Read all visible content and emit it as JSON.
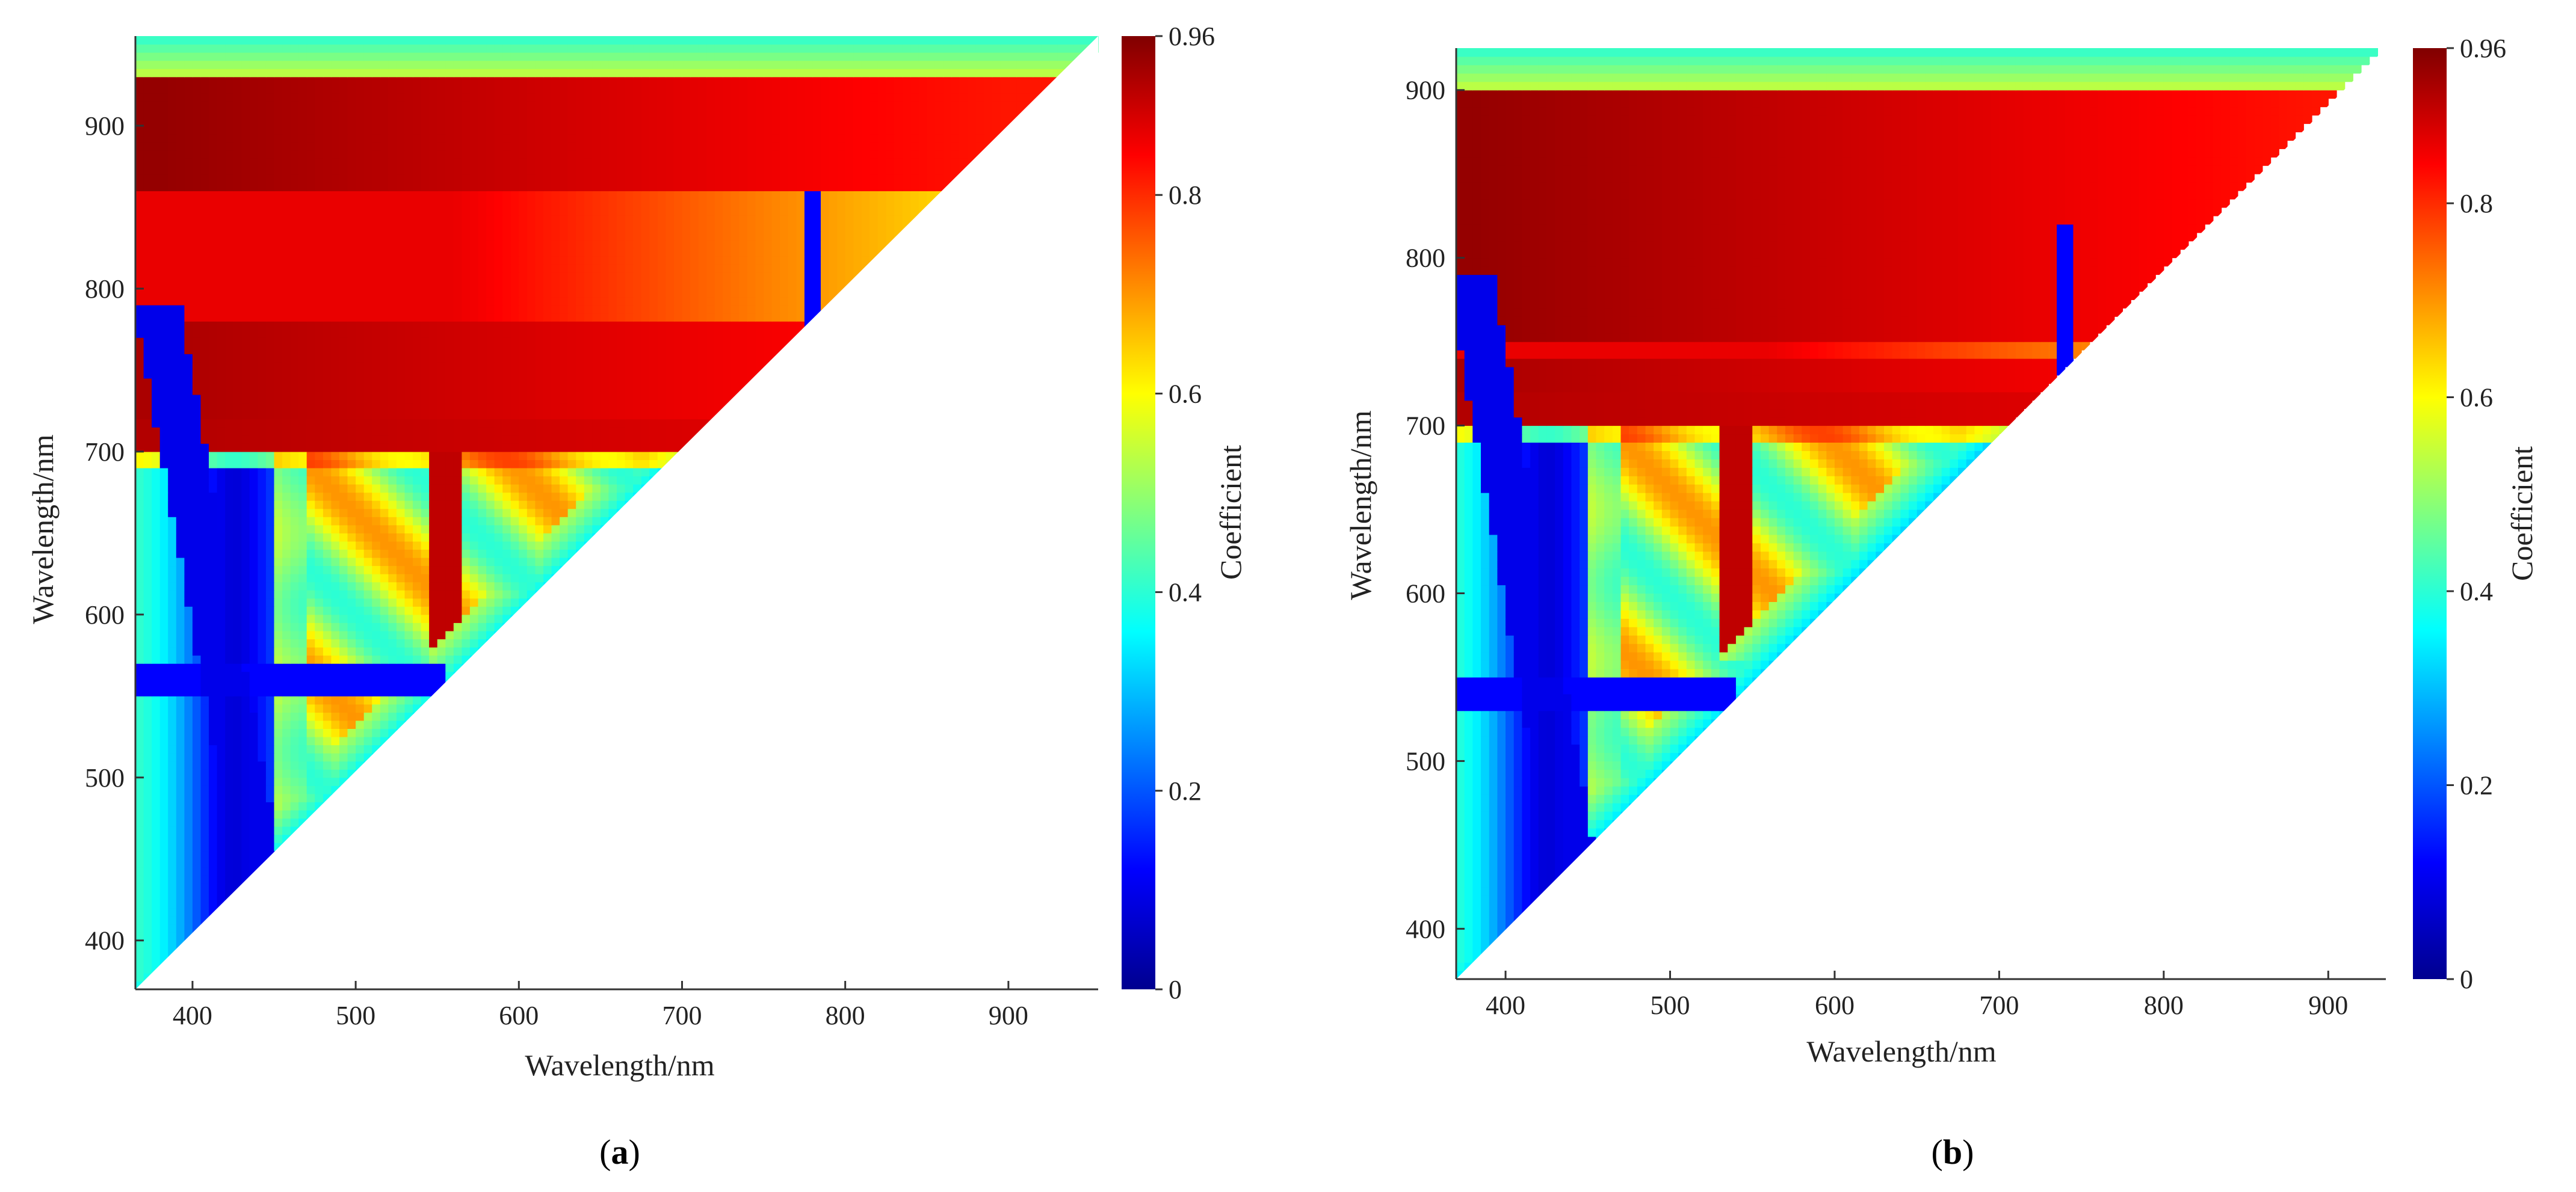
{
  "figure": {
    "panels": [
      {
        "label_open": "(",
        "letter": "a",
        "label_close": ")"
      },
      {
        "label_open": "(",
        "letter": "b",
        "label_close": ")"
      }
    ]
  },
  "chart_data": [
    {
      "type": "heatmap",
      "title": "",
      "xlabel": "Wavelength/nm",
      "ylabel": "Wavelength/nm",
      "colorbar_label": "Coefficient",
      "colorbar_ticks": [
        "0",
        "0.2",
        "0.4",
        "0.6",
        "0.8",
        "0.96"
      ],
      "colorbar_range": [
        0,
        0.96
      ],
      "xlim": [
        365,
        955
      ],
      "ylim": [
        370,
        955
      ],
      "x_ticks": [
        "400",
        "500",
        "600",
        "700",
        "800",
        "900"
      ],
      "y_ticks": [
        "400",
        "500",
        "600",
        "700",
        "800",
        "900"
      ],
      "grid": false,
      "mask": "upper-triangle (y >= x)",
      "features": {
        "top_band_low": [
          930,
          955
        ],
        "high_band": [
          860,
          930
        ],
        "thin_line_y": 780,
        "blue_ridge": [
          375,
          450
        ],
        "red_column_x": [
          545,
          565
        ],
        "blue_row_y": 560,
        "spike_x": 778
      }
    },
    {
      "type": "heatmap",
      "title": "",
      "xlabel": "Wavelength/nm",
      "ylabel": "Wavelength/nm",
      "colorbar_label": "Coefficient",
      "colorbar_ticks": [
        "0",
        "0.2",
        "0.4",
        "0.6",
        "0.8",
        "0.96"
      ],
      "colorbar_range": [
        0,
        0.96
      ],
      "xlim": [
        370,
        935
      ],
      "ylim": [
        370,
        925
      ],
      "x_ticks": [
        "400",
        "500",
        "600",
        "700",
        "800",
        "900"
      ],
      "y_ticks": [
        "400",
        "500",
        "600",
        "700",
        "800",
        "900"
      ],
      "grid": false,
      "mask": "upper-triangle (y >= x)",
      "features": {
        "top_band_low": [
          900,
          925
        ],
        "high_band": [
          750,
          900
        ],
        "thin_line_y": 738,
        "blue_ridge": [
          375,
          450
        ],
        "red_column_x": [
          528,
          548
        ],
        "blue_row_y": 540,
        "spike_x": 742
      }
    }
  ]
}
